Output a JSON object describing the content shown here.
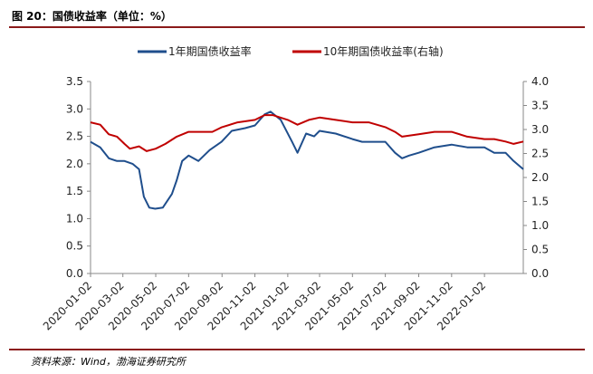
{
  "title": "图 20：国债收益率（单位：%）",
  "source": "资料来源：Wind，渤海证券研究所",
  "colors": {
    "series1": "#1F4E8C",
    "series2": "#C00000",
    "rule": "#8B1A1A"
  },
  "chart_data": {
    "type": "line",
    "legend_position": "top",
    "grid": false,
    "xlim": [
      "2020-01-02",
      "2022-03-15"
    ],
    "ylim_left": [
      0.0,
      3.5
    ],
    "ylim_right": [
      0.0,
      4.0
    ],
    "x_ticks": [
      "2020-01-02",
      "2020-03-02",
      "2020-05-02",
      "2020-07-02",
      "2020-09-02",
      "2020-11-02",
      "2021-01-02",
      "2021-03-02",
      "2021-05-02",
      "2021-07-02",
      "2021-09-02",
      "2021-11-02",
      "2022-01-02"
    ],
    "y_ticks_left": [
      "0.0",
      "0.5",
      "1.0",
      "1.5",
      "2.0",
      "2.5",
      "3.0",
      "3.5"
    ],
    "y_ticks_right": [
      "0.0",
      "0.5",
      "1.0",
      "1.5",
      "2.0",
      "2.5",
      "3.0",
      "3.5",
      "4.0"
    ],
    "series": [
      {
        "name": "1年期国债收益率",
        "axis": "left",
        "points": [
          [
            "2020-01-02",
            2.4
          ],
          [
            "2020-01-20",
            2.3
          ],
          [
            "2020-02-05",
            2.1
          ],
          [
            "2020-02-20",
            2.05
          ],
          [
            "2020-03-05",
            2.05
          ],
          [
            "2020-03-20",
            2.0
          ],
          [
            "2020-04-01",
            1.9
          ],
          [
            "2020-04-10",
            1.4
          ],
          [
            "2020-04-20",
            1.2
          ],
          [
            "2020-05-01",
            1.18
          ],
          [
            "2020-05-15",
            1.2
          ],
          [
            "2020-06-01",
            1.45
          ],
          [
            "2020-06-10",
            1.7
          ],
          [
            "2020-06-20",
            2.05
          ],
          [
            "2020-07-02",
            2.15
          ],
          [
            "2020-07-20",
            2.05
          ],
          [
            "2020-08-10",
            2.25
          ],
          [
            "2020-09-01",
            2.4
          ],
          [
            "2020-09-20",
            2.6
          ],
          [
            "2020-10-15",
            2.65
          ],
          [
            "2020-11-02",
            2.7
          ],
          [
            "2020-11-20",
            2.9
          ],
          [
            "2020-12-01",
            2.95
          ],
          [
            "2020-12-20",
            2.8
          ],
          [
            "2021-01-10",
            2.4
          ],
          [
            "2021-01-20",
            2.2
          ],
          [
            "2021-02-05",
            2.55
          ],
          [
            "2021-02-20",
            2.5
          ],
          [
            "2021-03-02",
            2.6
          ],
          [
            "2021-04-01",
            2.55
          ],
          [
            "2021-05-02",
            2.45
          ],
          [
            "2021-05-20",
            2.4
          ],
          [
            "2021-06-20",
            2.4
          ],
          [
            "2021-07-02",
            2.4
          ],
          [
            "2021-07-20",
            2.2
          ],
          [
            "2021-08-02",
            2.1
          ],
          [
            "2021-08-15",
            2.15
          ],
          [
            "2021-09-02",
            2.2
          ],
          [
            "2021-10-01",
            2.3
          ],
          [
            "2021-11-02",
            2.35
          ],
          [
            "2021-12-01",
            2.3
          ],
          [
            "2022-01-02",
            2.3
          ],
          [
            "2022-01-20",
            2.2
          ],
          [
            "2022-02-10",
            2.2
          ],
          [
            "2022-02-25",
            2.05
          ],
          [
            "2022-03-15",
            1.9
          ]
        ]
      },
      {
        "name": "10年期国债收益率(右轴)",
        "axis": "right",
        "points": [
          [
            "2020-01-02",
            3.15
          ],
          [
            "2020-01-20",
            3.1
          ],
          [
            "2020-02-05",
            2.9
          ],
          [
            "2020-02-20",
            2.85
          ],
          [
            "2020-03-05",
            2.7
          ],
          [
            "2020-03-15",
            2.6
          ],
          [
            "2020-04-01",
            2.65
          ],
          [
            "2020-04-15",
            2.55
          ],
          [
            "2020-05-02",
            2.6
          ],
          [
            "2020-05-20",
            2.7
          ],
          [
            "2020-06-10",
            2.85
          ],
          [
            "2020-07-02",
            2.95
          ],
          [
            "2020-07-20",
            2.95
          ],
          [
            "2020-08-15",
            2.95
          ],
          [
            "2020-09-02",
            3.05
          ],
          [
            "2020-10-01",
            3.15
          ],
          [
            "2020-11-02",
            3.2
          ],
          [
            "2020-11-20",
            3.3
          ],
          [
            "2020-12-05",
            3.3
          ],
          [
            "2021-01-02",
            3.2
          ],
          [
            "2021-01-20",
            3.1
          ],
          [
            "2021-02-10",
            3.2
          ],
          [
            "2021-03-02",
            3.25
          ],
          [
            "2021-04-01",
            3.2
          ],
          [
            "2021-05-02",
            3.15
          ],
          [
            "2021-06-01",
            3.15
          ],
          [
            "2021-07-02",
            3.05
          ],
          [
            "2021-07-20",
            2.95
          ],
          [
            "2021-08-02",
            2.85
          ],
          [
            "2021-09-02",
            2.9
          ],
          [
            "2021-10-01",
            2.95
          ],
          [
            "2021-11-02",
            2.95
          ],
          [
            "2021-12-01",
            2.85
          ],
          [
            "2022-01-02",
            2.8
          ],
          [
            "2022-01-20",
            2.8
          ],
          [
            "2022-02-10",
            2.75
          ],
          [
            "2022-02-25",
            2.7
          ],
          [
            "2022-03-15",
            2.75
          ]
        ]
      }
    ]
  }
}
